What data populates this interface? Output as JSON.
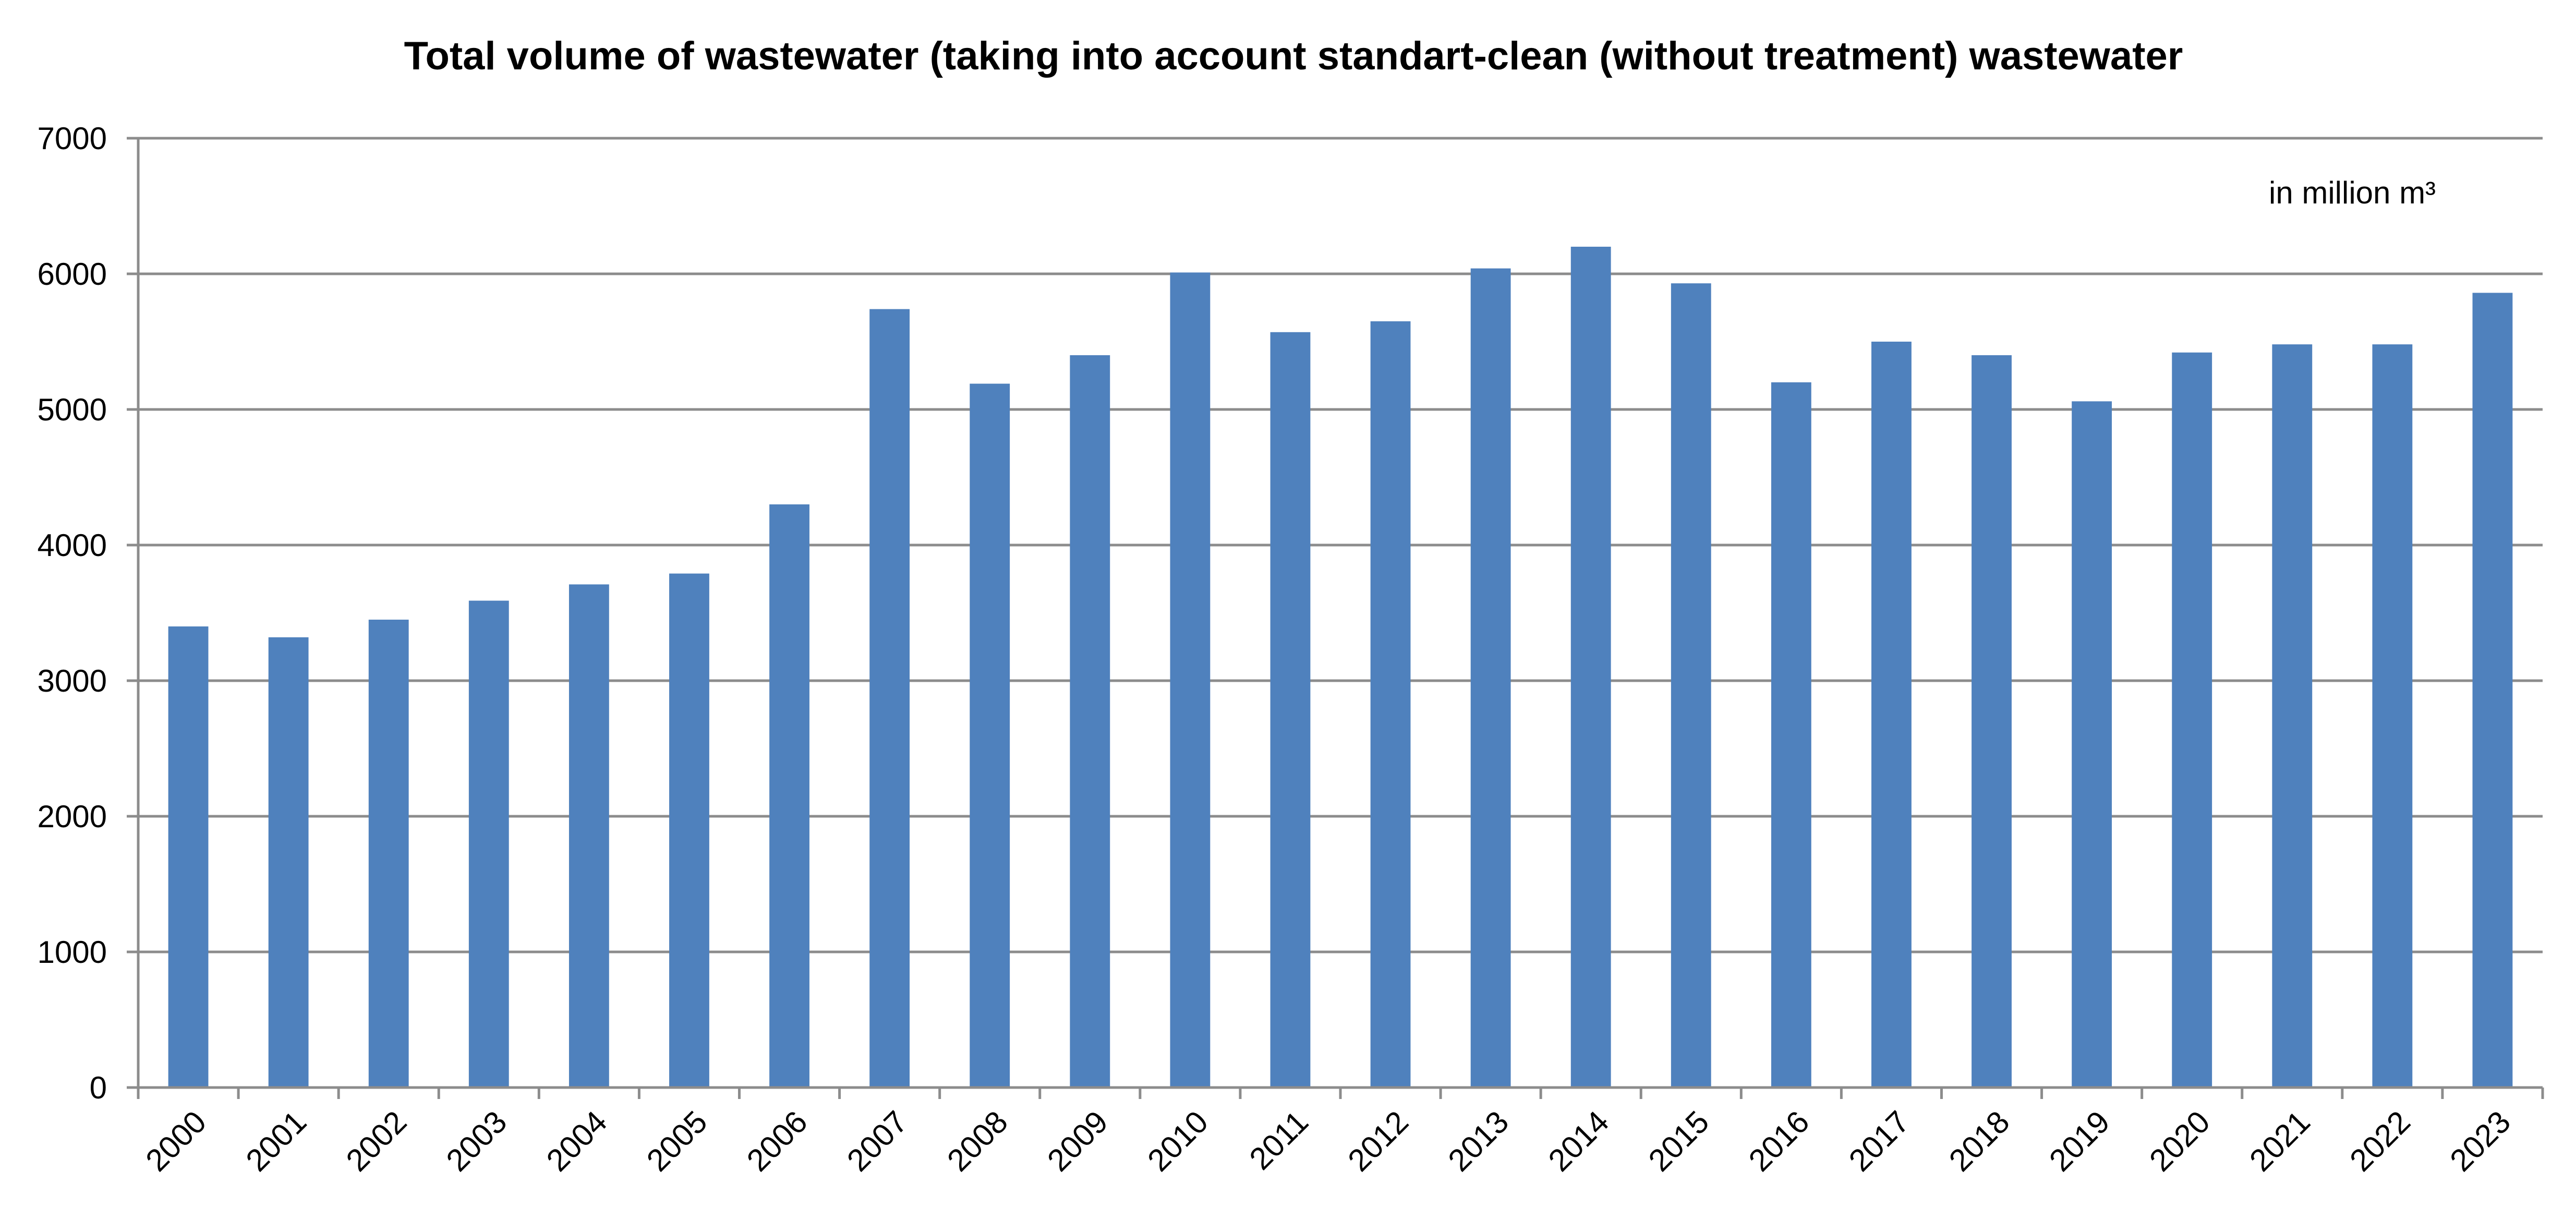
{
  "chart_data": {
    "type": "bar",
    "title": "Total volume of wastewater (taking into account standart-clean (without treatment) wastewater",
    "unit_label": "in million m³",
    "xlabel": "",
    "ylabel": "",
    "ylim": [
      0,
      7000
    ],
    "yticks": [
      "0",
      "1000",
      "2000",
      "3000",
      "4000",
      "5000",
      "6000",
      "7000"
    ],
    "grid": true,
    "bar_color": "#4f81bd",
    "categories": [
      "2000",
      "2001",
      "2002",
      "2003",
      "2004",
      "2005",
      "2006",
      "2007",
      "2008",
      "2009",
      "2010",
      "2011",
      "2012",
      "2013",
      "2014",
      "2015",
      "2016",
      "2017",
      "2018",
      "2019",
      "2020",
      "2021",
      "2022",
      "2023"
    ],
    "values": [
      3400,
      3320,
      3450,
      3590,
      3710,
      3790,
      4300,
      5740,
      5190,
      5400,
      6010,
      5570,
      5650,
      6040,
      6200,
      5930,
      5200,
      5500,
      5400,
      5060,
      5420,
      5480,
      5480,
      5860
    ]
  }
}
